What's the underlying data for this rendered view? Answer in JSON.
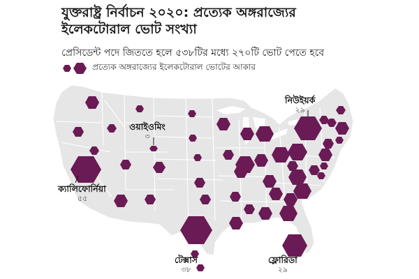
{
  "title_line1": "যুক্তরাষ্ট্র নির্বাচন ২০২০: প্রত্যেক অঙ্গরাজ্যের",
  "title_line2": "ইলেকটোরাল ভোট সংখ্যা",
  "subtitle": "প্রেসিডেন্ট পদে জিততে হলে ৫৩৮টির মধ্যে ২৭০টি ভোট পেতে হবে",
  "legend_text": "প্রত্যেক অঙ্গরাজ্যের ইলেকটোরাল ভোটের আকার",
  "colors": {
    "hexagon": "#6a1a54",
    "land": "#e6e6e6",
    "border": "#ffffff"
  },
  "labels": {
    "wyoming": {
      "name": "ওয়াইওমিং",
      "votes": "৩"
    },
    "california": {
      "name": "ক্যালিফোর্নিয়া",
      "votes": "৫৫"
    },
    "texas": {
      "name": "টেক্সাস",
      "votes": "৩৮"
    },
    "newyork": {
      "name": "নিউইয়র্ক",
      "votes": "২৯"
    },
    "florida": {
      "name": "ফ্লোরিডা",
      "votes": "২৯"
    }
  }
}
